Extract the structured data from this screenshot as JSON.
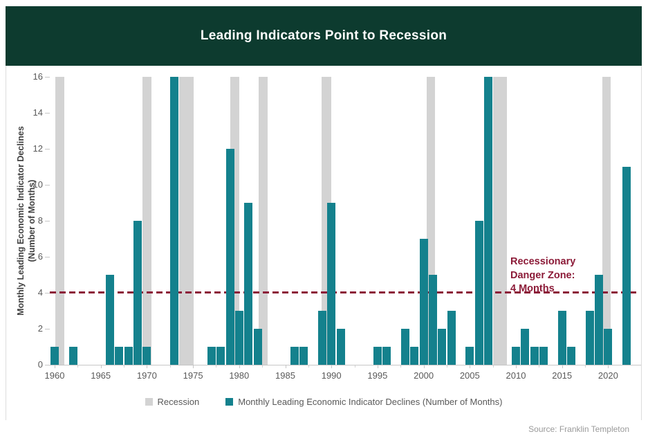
{
  "header": {
    "title": "Leading Indicators Point to Recession"
  },
  "chart_data": {
    "type": "bar",
    "title": "Leading Indicators Point to Recession",
    "grid": "off",
    "legend_position": "bottom",
    "y_axis": {
      "label_line1": "Monthly Leading Economic Indicator Declines",
      "label_line2": "(Number of Months)",
      "min": 0,
      "max": 16,
      "ticks": [
        0,
        2,
        4,
        6,
        8,
        10,
        12,
        14,
        16
      ]
    },
    "x_axis": {
      "major_ticks": [
        1960,
        1965,
        1970,
        1975,
        1980,
        1985,
        1990,
        1995,
        2000,
        2005,
        2010,
        2015,
        2020
      ],
      "minor_ticks": [
        1962.5,
        1967.5,
        1972.5,
        1977.5,
        1982.5,
        1987.5,
        1992.5,
        1997.5,
        2002.5,
        2007.5,
        2012.5,
        2017.5
      ]
    },
    "series": [
      {
        "name": "Recession",
        "type": "band",
        "color": "#d3d3d3",
        "spans": [
          [
            1960.1,
            1961.05
          ],
          [
            1969.55,
            1970.5
          ],
          [
            1973.5,
            1975.05
          ],
          [
            1979.05,
            1980.0
          ],
          [
            1982.1,
            1983.1
          ],
          [
            1988.95,
            1990.0
          ],
          [
            2000.3,
            2001.2
          ],
          [
            2007.5,
            2009.05
          ],
          [
            2019.4,
            2020.25
          ]
        ]
      },
      {
        "name": "Monthly Leading Economic Indicator Declines (Number of Months)",
        "type": "bar",
        "color": "#14818d",
        "points": [
          [
            1960,
            1
          ],
          [
            1962,
            1
          ],
          [
            1966,
            5
          ],
          [
            1967,
            1
          ],
          [
            1968,
            1
          ],
          [
            1969,
            8
          ],
          [
            1970,
            1
          ],
          [
            1973,
            16
          ],
          [
            1977,
            1
          ],
          [
            1978,
            1
          ],
          [
            1979,
            12
          ],
          [
            1980,
            3
          ],
          [
            1981,
            9
          ],
          [
            1982,
            2
          ],
          [
            1986,
            1
          ],
          [
            1987,
            1
          ],
          [
            1989,
            3
          ],
          [
            1990,
            9
          ],
          [
            1991,
            2
          ],
          [
            1995,
            1
          ],
          [
            1996,
            1
          ],
          [
            1998,
            2
          ],
          [
            1999,
            1
          ],
          [
            2000,
            7
          ],
          [
            2001,
            5
          ],
          [
            2002,
            2
          ],
          [
            2003,
            3
          ],
          [
            2005,
            1
          ],
          [
            2006,
            8
          ],
          [
            2007,
            16
          ],
          [
            2010,
            1
          ],
          [
            2011,
            2
          ],
          [
            2012,
            1
          ],
          [
            2013,
            1
          ],
          [
            2015,
            3
          ],
          [
            2016,
            1
          ],
          [
            2018,
            3
          ],
          [
            2019,
            5
          ],
          [
            2020,
            2
          ],
          [
            2022,
            11
          ]
        ]
      }
    ],
    "threshold": {
      "value": 4,
      "style": "dashed",
      "color": "#8c1b38",
      "label_lines": [
        "Recessionary",
        "Danger Zone:",
        "4 Months"
      ]
    }
  },
  "source": {
    "label": "Source: Franklin Templeton"
  },
  "colors": {
    "header_bg": "#0d3b2f",
    "header_text": "#ffffff",
    "band": "#d3d3d3",
    "bar": "#14818d",
    "threshold": "#8c1b38",
    "axis_text": "#595959",
    "axis_line": "#c6c6c6",
    "ylabel_text": "#404040",
    "source_text": "#9a9a9a",
    "card_border": "#dcdcdc"
  }
}
